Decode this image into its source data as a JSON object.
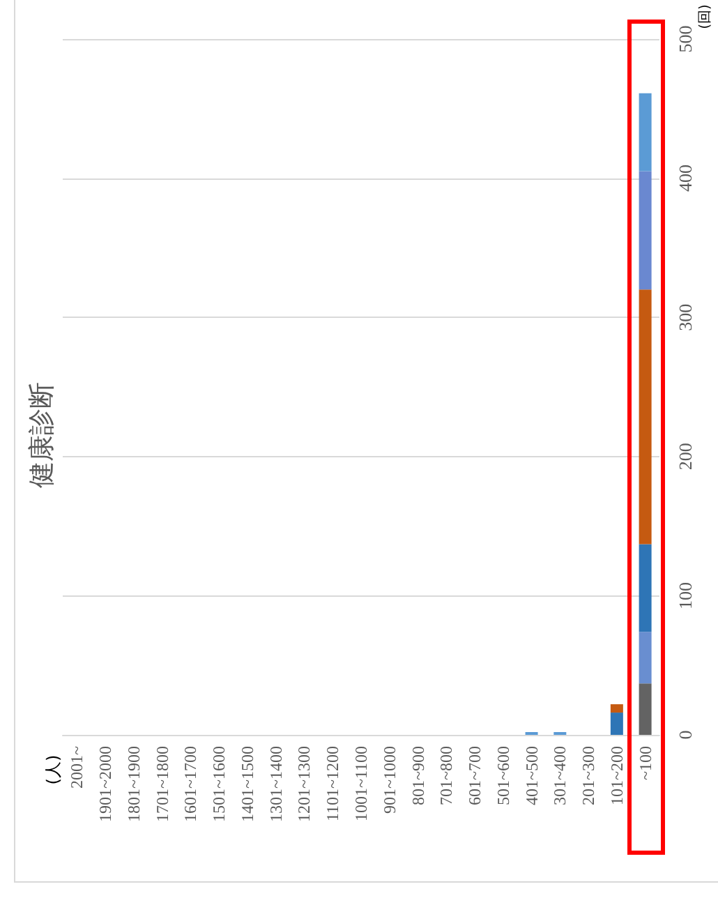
{
  "chart_data": {
    "type": "bar",
    "title": "健康診断",
    "annotations": [
      "(人)"
    ],
    "ylabel": "(回)",
    "stacked": true,
    "grid": "y",
    "categories": [
      "2001~",
      "1901~2000",
      "1801~1900",
      "1701~1800",
      "1601~1700",
      "1501~1600",
      "1401~1500",
      "1301~1400",
      "1201~1300",
      "1101~1200",
      "1001~1100",
      "901~1000",
      "801~900",
      "701~800",
      "601~700",
      "501~600",
      "401~500",
      "301~400",
      "201~300",
      "101~200",
      "~100"
    ],
    "ylim": [
      0,
      500
    ],
    "yticks": [
      0,
      100,
      200,
      300,
      400,
      500
    ],
    "series": [
      {
        "color": "#636363",
        "values": [
          null,
          null,
          null,
          null,
          null,
          null,
          null,
          null,
          null,
          null,
          null,
          null,
          null,
          null,
          null,
          null,
          null,
          null,
          null,
          null,
          37
        ]
      },
      {
        "color": "#698ed0",
        "values": [
          null,
          null,
          null,
          null,
          null,
          null,
          null,
          null,
          null,
          null,
          null,
          null,
          null,
          null,
          null,
          null,
          null,
          null,
          null,
          null,
          37
        ]
      },
      {
        "color": "#2e75b6",
        "values": [
          null,
          null,
          null,
          null,
          null,
          null,
          null,
          null,
          null,
          null,
          null,
          null,
          null,
          null,
          null,
          null,
          null,
          null,
          null,
          16,
          63
        ]
      },
      {
        "color": "#c55a11",
        "values": [
          null,
          null,
          null,
          null,
          null,
          null,
          null,
          null,
          null,
          null,
          null,
          null,
          null,
          null,
          null,
          null,
          null,
          null,
          null,
          6,
          183
        ]
      },
      {
        "color": "#6a88d0",
        "values": [
          null,
          null,
          null,
          null,
          null,
          null,
          null,
          null,
          null,
          null,
          null,
          null,
          null,
          null,
          null,
          null,
          null,
          null,
          null,
          null,
          85
        ]
      },
      {
        "color": "#5b9bd5",
        "values": [
          null,
          null,
          null,
          null,
          null,
          null,
          null,
          null,
          null,
          null,
          null,
          null,
          null,
          null,
          null,
          null,
          2,
          2,
          null,
          null,
          56
        ]
      }
    ]
  }
}
